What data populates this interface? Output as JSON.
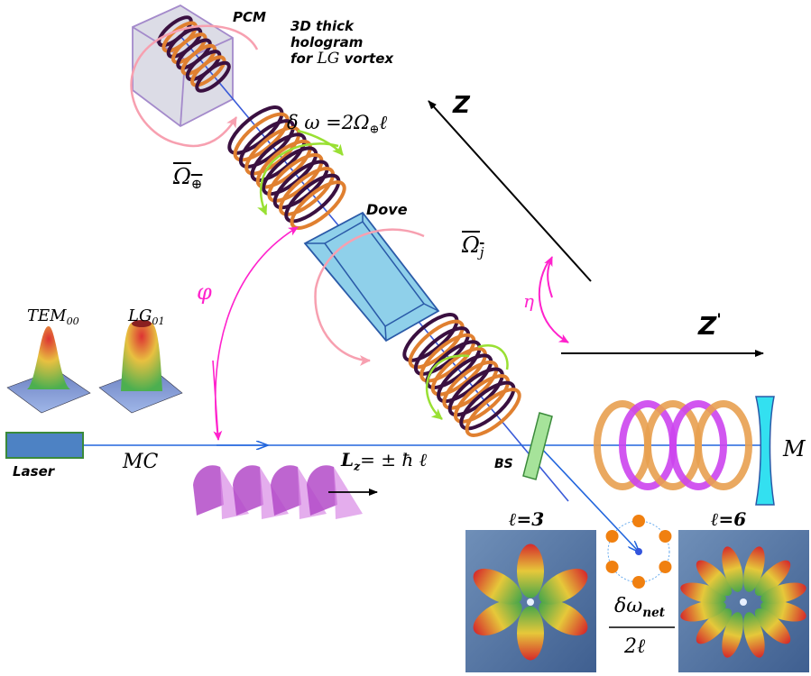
{
  "labels": {
    "pcm": "PCM",
    "hologram_line1": "3D thick",
    "hologram_line2": "hologram",
    "hologram_line3_prefix": "for ",
    "hologram_line3_lg": "LG",
    "hologram_line3_suffix": " vortex",
    "delta_omega": "δ ω =2Ω",
    "delta_omega_sub": "⊕",
    "delta_omega_l": "ℓ",
    "omega_earth": "Ω",
    "omega_earth_sub": "⊕",
    "dove": "Dove",
    "omega_j": "Ω",
    "omega_j_sub": "j",
    "z_axis": "Z",
    "z_prime_axis": "Z",
    "z_prime_mark": "'",
    "eta": "η",
    "phi": "φ",
    "tem": "TEM",
    "tem_sub": "00",
    "lg": "LG",
    "lg_sub": "01",
    "laser": "Laser",
    "mc": "MC",
    "lz_L": "L",
    "lz_sub": "z",
    "lz_rest": "= ± ħ ℓ",
    "bs": "BS",
    "mirror": "M",
    "l3": "ℓ=3",
    "l6": "ℓ=6",
    "dw_net": "δω",
    "dw_net_sub": "net",
    "two_l": "2ℓ"
  },
  "colors": {
    "beam": "#2266dd",
    "dove_fill": "#8fd0ea",
    "dove_edge": "#2a5aa8",
    "laser_fill": "#4d82c4",
    "laser_edge": "#3a8a3a",
    "bs_fill": "#a6e39a",
    "mirror_fill": "#33e0f0",
    "magenta": "#ff22cc",
    "pink": "#f7a0b0",
    "green_arrow": "#99e033",
    "orange_ring": "#e8a050",
    "violet_ring": "#cc44ee",
    "orange_dot": "#f08010",
    "coil_dark": "#3a1040",
    "coil_orange": "#e08030",
    "pcm_fill": "#dcdce6",
    "pcm_edge": "#a48acb"
  }
}
